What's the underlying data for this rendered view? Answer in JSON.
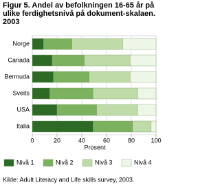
{
  "chart_data": {
    "type": "stacked-barh",
    "title": "Figur 5. Andel av befolkningen 16-65 år på ulike ferdighetsnivå på dokument-skalaen. 2003",
    "categories": [
      "Norge",
      "Canada",
      "Bermuda",
      "Sveits",
      "USA",
      "Italia"
    ],
    "series": [
      {
        "name": "Nivå 1",
        "color": "#2d6a26",
        "values": [
          9,
          16,
          17,
          14,
          20,
          49
        ]
      },
      {
        "name": "Nivå 2",
        "color": "#7cb15e",
        "values": [
          23,
          26,
          29,
          35,
          32,
          32
        ]
      },
      {
        "name": "Nivå 3",
        "color": "#bedba8",
        "values": [
          41,
          37,
          33,
          36,
          33,
          15
        ]
      },
      {
        "name": "Nivå 4",
        "color": "#eef6e8",
        "values": [
          27,
          21,
          21,
          15,
          15,
          4
        ]
      }
    ],
    "xlim": [
      0,
      100
    ],
    "xticks": [
      0,
      20,
      40,
      60,
      80,
      100
    ],
    "grid": true,
    "xlabel": "Prosent",
    "source": "Kilde: Adult Literacy and Life skills survey, 2003."
  }
}
